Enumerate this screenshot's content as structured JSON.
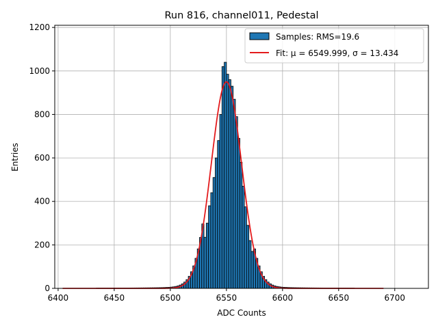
{
  "chart_data": {
    "type": "bar",
    "title": "Run 816, channel011, Pedestal",
    "xlabel": "ADC Counts",
    "ylabel": "Entries",
    "xlim": [
      6397,
      6730
    ],
    "ylim": [
      0,
      1210
    ],
    "xticks": [
      6400,
      6450,
      6500,
      6550,
      6600,
      6650,
      6700
    ],
    "yticks": [
      0,
      200,
      400,
      600,
      800,
      1000,
      1200
    ],
    "grid": true,
    "legend_position": "top-right",
    "histogram": {
      "name": "Samples: RMS=19.6",
      "bin_width": 2,
      "bin_start": 6404,
      "bin_end": 6722,
      "bins": [
        {
          "x": 6531,
          "y": 235
        },
        {
          "x": 6533,
          "y": 300
        },
        {
          "x": 6535,
          "y": 380
        },
        {
          "x": 6537,
          "y": 440
        },
        {
          "x": 6539,
          "y": 510
        },
        {
          "x": 6541,
          "y": 600
        },
        {
          "x": 6543,
          "y": 680
        },
        {
          "x": 6545,
          "y": 800
        },
        {
          "x": 6547,
          "y": 1020
        },
        {
          "x": 6549,
          "y": 1040
        },
        {
          "x": 6551,
          "y": 985
        },
        {
          "x": 6553,
          "y": 960
        },
        {
          "x": 6555,
          "y": 930
        },
        {
          "x": 6557,
          "y": 870
        },
        {
          "x": 6559,
          "y": 790
        },
        {
          "x": 6561,
          "y": 690
        },
        {
          "x": 6563,
          "y": 580
        },
        {
          "x": 6565,
          "y": 470
        },
        {
          "x": 6567,
          "y": 375
        },
        {
          "x": 6569,
          "y": 290
        },
        {
          "x": 6571,
          "y": 220
        },
        {
          "x": 6573,
          "y": 170
        }
      ]
    },
    "fit": {
      "name": "Fit: μ = 6549.999, σ = 13.434",
      "mu": 6549.999,
      "sigma": 13.434,
      "amplitude": 950,
      "x_range": [
        6404,
        6690
      ]
    },
    "colors": {
      "bar_fill": "#1f77b4",
      "bar_edge": "#000000",
      "fit_line": "#e31a1c",
      "grid": "#b0b0b0"
    }
  }
}
